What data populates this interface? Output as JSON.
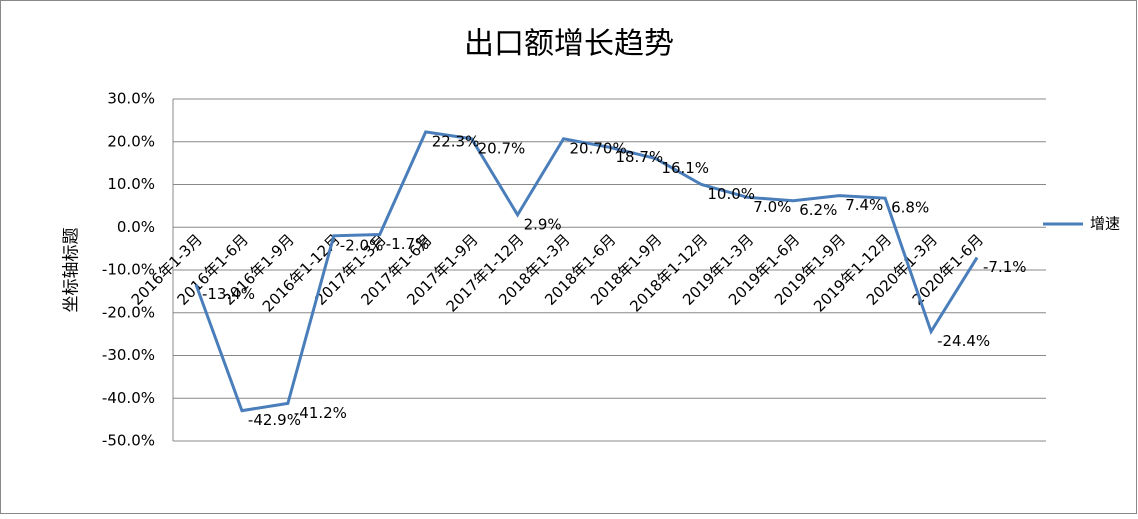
{
  "chart_data": {
    "type": "line",
    "title": "出口额增长趋势",
    "y_label": "坐标轴标题",
    "categories": [
      "2016年1-3月",
      "2016年1-6月",
      "2016年1-9月",
      "2016年1-12月",
      "2017年1-3月",
      "2017年1-6月",
      "2017年1-9月",
      "2017年1-12月",
      "2018年1-3月",
      "2018年1-6月",
      "2018年1-9月",
      "2018年1-12月",
      "2019年1-3月",
      "2019年1-6月",
      "2019年1-9月",
      "2019年1-12月",
      "2020年1-3月",
      "2020年1-6月"
    ],
    "series": [
      {
        "name": "增速",
        "color": "#4a7ebb",
        "values": [
          -13.4,
          -42.9,
          -41.2,
          -2.0,
          -1.7,
          22.3,
          20.7,
          2.9,
          20.7,
          18.7,
          16.1,
          10.0,
          7.0,
          6.2,
          7.4,
          6.8,
          -24.4,
          -7.1
        ],
        "value_labels": [
          "-13.4%",
          "-42.9%",
          "-41.2%",
          "-2.0%",
          "-1.7%",
          "22.3%",
          "20.7%",
          "2.9%",
          "20.70%",
          "18.7%",
          "16.1%",
          "10.0%",
          "7.0%",
          "6.2%",
          "7.4%",
          "6.8%",
          "-24.4%",
          "-7.1%"
        ]
      }
    ],
    "ylim": [
      -50,
      30
    ],
    "yticks": [
      {
        "value": -50,
        "label": "-50.0%"
      },
      {
        "value": -40,
        "label": "-40.0%"
      },
      {
        "value": -30,
        "label": "-30.0%"
      },
      {
        "value": -20,
        "label": "-20.0%"
      },
      {
        "value": -10,
        "label": "-10.0%"
      },
      {
        "value": 0,
        "label": "0.0%"
      },
      {
        "value": 10,
        "label": "10.0%"
      },
      {
        "value": 20,
        "label": "20.0%"
      },
      {
        "value": 30,
        "label": "30.0%"
      }
    ],
    "grid": true,
    "legend": "right"
  }
}
